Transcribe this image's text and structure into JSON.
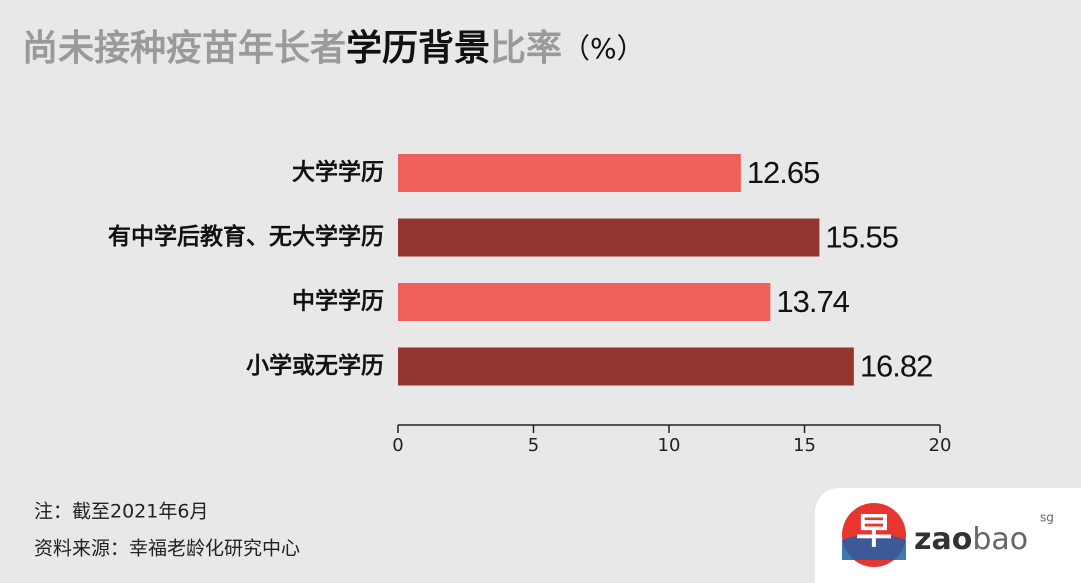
{
  "chart_data": {
    "type": "bar",
    "orientation": "horizontal",
    "title": [
      "尚未接种疫苗年长者",
      "学历背景",
      "比率",
      "（%）"
    ],
    "categories": [
      "大学学历",
      "有中学后教育、无大学学历",
      "中学学历",
      "小学或无学历"
    ],
    "values": [
      12.65,
      15.55,
      13.74,
      16.82
    ],
    "colors": [
      "#f0605a",
      "#943530",
      "#f0605a",
      "#943530"
    ],
    "xlim": [
      0,
      20
    ],
    "xticks": [
      0,
      5,
      10,
      15,
      20
    ],
    "grid": false,
    "notes": [
      "注：截至2021年6月",
      "资料来源：幸福老龄化研究中心"
    ],
    "logo": {
      "mark": "早",
      "text_a": "zao",
      "text_b": "bao",
      "sup": "sg"
    }
  }
}
